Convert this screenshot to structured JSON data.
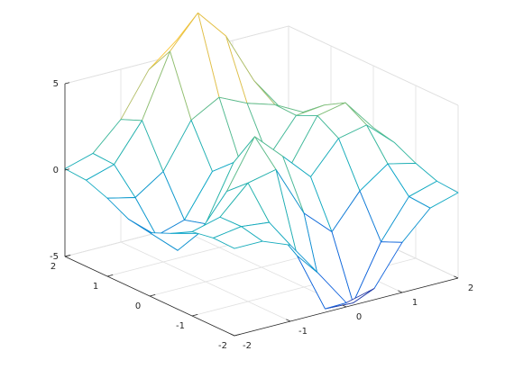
{
  "chart_data": {
    "type": "mesh",
    "x": [
      -2,
      -1.5,
      -1,
      -0.5,
      0,
      0.5,
      1,
      1.5,
      2
    ],
    "y": [
      -2,
      -1.5,
      -1,
      -0.5,
      0,
      0.5,
      1,
      1.5,
      2
    ],
    "z": [
      [
        0.05,
        0.05,
        -0.59,
        -2.64,
        -4.76,
        -4.35,
        -2.1,
        -0.53,
        -0.06
      ],
      [
        0.08,
        0.33,
        0.15,
        -2.19,
        -5.68,
        -5.76,
        -2.64,
        -0.44,
        0.04
      ],
      [
        -0.13,
        0.3,
        1.86,
        2.22,
        -0.72,
        -2.22,
        -0.27,
        0.88,
        0.5
      ],
      [
        -0.8,
        -1.21,
        0.8,
        3.55,
        2,
        0.39,
        2.2,
        2.56,
        1.12
      ],
      [
        -1.33,
        -2.77,
        -1.65,
        1.48,
        0.98,
        0.37,
        2.94,
        3.27,
        1.41
      ],
      [
        -1.12,
        -2.49,
        -2,
        0.39,
        0.46,
        0.38,
        2.38,
        2.56,
        1.09
      ],
      [
        -0.48,
        -0.86,
        0.23,
        2.79,
        3.69,
        2.93,
        2.43,
        1.58,
        0.58
      ],
      [
        -0.01,
        0.48,
        2.61,
        6.2,
        8,
        6.25,
        3.26,
        1.18,
        0.29
      ],
      [
        0.08,
        0.55,
        2.1,
        4.56,
        5.86,
        4.57,
        2.21,
        0.68,
        0.13
      ]
    ],
    "xlim": [
      -2,
      2
    ],
    "ylim": [
      -2,
      2
    ],
    "zlim": [
      -5,
      5
    ],
    "xticks": [
      -2,
      -1,
      0,
      1,
      2
    ],
    "yticks": [
      -2,
      -1,
      0,
      1,
      2
    ],
    "zticks": [
      -5,
      0,
      5
    ],
    "grid": true,
    "colormap": [
      "#352a87",
      "#0f5cdd",
      "#1481d6",
      "#06a4ca",
      "#2eb7a4",
      "#87bf77",
      "#d1bb59",
      "#fec832",
      "#f9fb0e"
    ]
  }
}
